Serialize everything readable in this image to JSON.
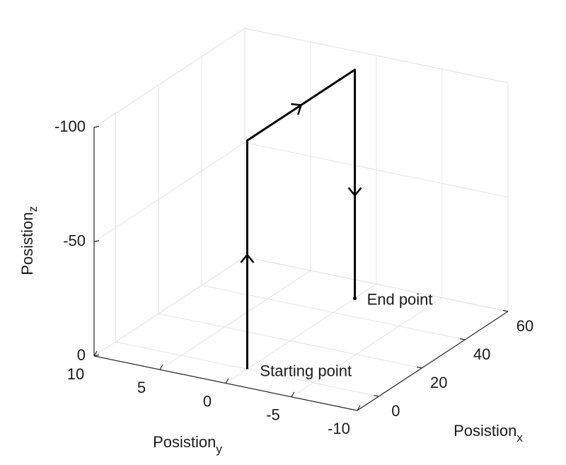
{
  "chart_data": {
    "type": "line3d",
    "xlabel": "Posistion",
    "xlabel_subscript": "x",
    "ylabel": "Posistion",
    "ylabel_subscript": "y",
    "zlabel": "Posistion",
    "zlabel_subscript": "z",
    "xlim": [
      -10,
      60
    ],
    "xticks": [
      0,
      20,
      40,
      60
    ],
    "ylim": [
      -10,
      10
    ],
    "yticks": [
      10,
      5,
      0,
      -5,
      -10
    ],
    "zlim": [
      -100,
      0
    ],
    "zticks": [
      -100,
      -50,
      0
    ],
    "z_reverse": true,
    "grid": true,
    "series": [
      {
        "color": "#000000",
        "x": [
          0,
          0,
          50,
          50
        ],
        "y": [
          0,
          0,
          0,
          0
        ],
        "z": [
          0,
          -100,
          -100,
          0
        ]
      }
    ],
    "annotations": [
      "Starting point",
      "End point"
    ]
  }
}
